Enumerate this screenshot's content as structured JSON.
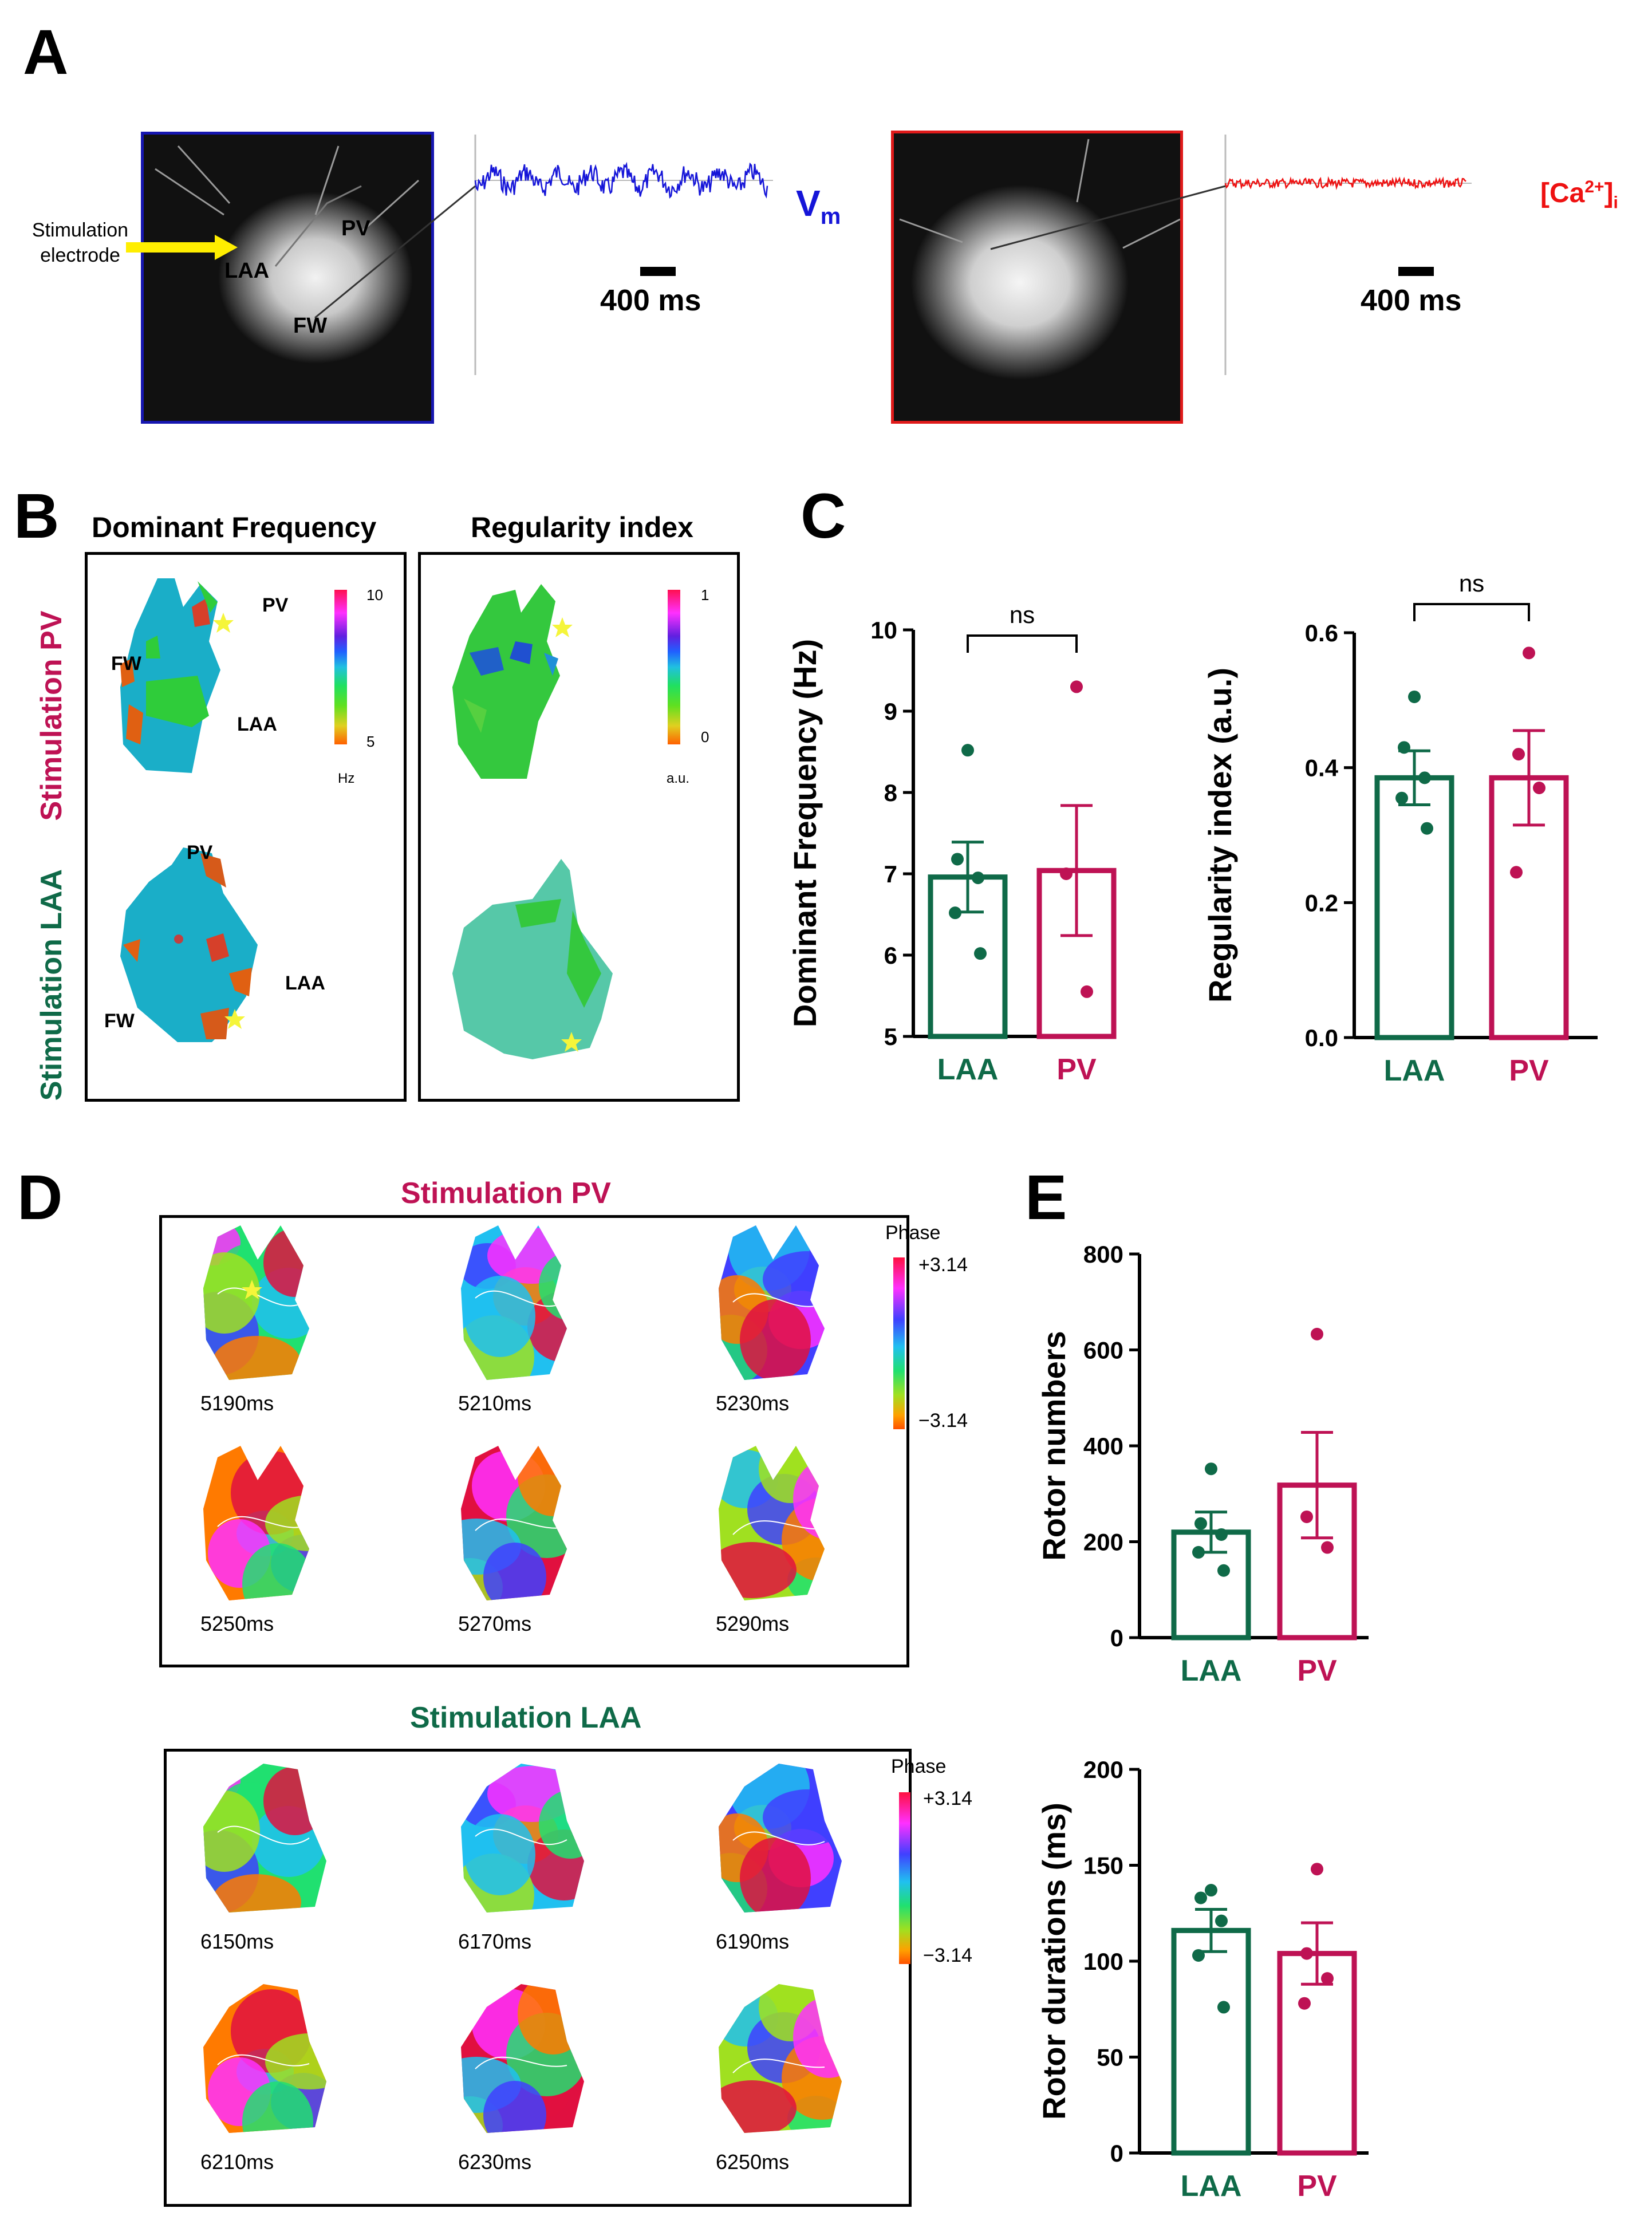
{
  "panels": {
    "A": {
      "letter": "A",
      "stim_label": "Stimulation\nelectrode",
      "map_labels": {
        "pv": "PV",
        "laa": "LAA",
        "fw": "FW"
      },
      "vm_label": "V",
      "vm_sub": "m",
      "ca_label_main": "[Ca",
      "ca_sup": "2+",
      "ca_close": "]",
      "ca_sub": "i",
      "scale_bar": "400 ms",
      "scale_bar_2": "400 ms",
      "colors": {
        "vm_frame": "#1616b0",
        "ca_frame": "#e01a1a",
        "vm_trace": "#1515d8",
        "ca_trace": "#ee1111"
      }
    },
    "B": {
      "letter": "B",
      "col1_title": "Dominant Frequency",
      "col2_title": "Regularity index",
      "row1_label": "Stimulation PV",
      "row2_label": "Stimulation LAA",
      "df_colorbar": {
        "max": "10",
        "min": "5",
        "unit": "Hz"
      },
      "ri_colorbar": {
        "max": "1",
        "min": "0",
        "unit": "a.u."
      },
      "map_labels": {
        "pv": "PV",
        "laa": "LAA",
        "fw": "FW",
        "pv2": "PV",
        "laa2": "LAA",
        "fw2": "FW"
      }
    },
    "C": {
      "letter": "C"
    },
    "D": {
      "letter": "D",
      "top_title": "Stimulation PV",
      "bottom_title": "Stimulation LAA",
      "colorbar_title": "Phase",
      "colorbar_max": "+3.14",
      "colorbar_min": "−3.14",
      "colorbar_title_2": "Phase",
      "colorbar_max_2": "+3.14",
      "colorbar_min_2": "−3.14",
      "pv_times": [
        "5190ms",
        "5210ms",
        "5230ms",
        "5250ms",
        "5270ms",
        "5290ms"
      ],
      "laa_times": [
        "6150ms",
        "6170ms",
        "6190ms",
        "6210ms",
        "6230ms",
        "6250ms"
      ]
    },
    "E": {
      "letter": "E"
    }
  },
  "group_colors": {
    "LAA": "#0f6a48",
    "PV": "#be1254"
  },
  "chart_data": [
    {
      "id": "df",
      "type": "bar",
      "ylabel": "Dominant Frequency (Hz)",
      "ylim": [
        5,
        10
      ],
      "yticks": [
        "5",
        "6",
        "7",
        "8",
        "9",
        "10"
      ],
      "categories": [
        "LAA",
        "PV"
      ],
      "values": [
        6.96,
        7.04
      ],
      "sem": [
        0.43,
        0.8
      ],
      "points": [
        [
          8.52,
          7.18,
          6.95,
          6.52,
          6.02
        ],
        [
          9.3,
          7.0,
          5.55
        ]
      ],
      "significance": "ns"
    },
    {
      "id": "ri",
      "type": "bar",
      "ylabel": "Regularity index (a.u.)",
      "ylim": [
        0,
        0.6
      ],
      "yticks": [
        "0.0",
        "0.2",
        "0.4",
        "0.6"
      ],
      "categories": [
        "LAA",
        "PV"
      ],
      "values": [
        0.385,
        0.385
      ],
      "sem": [
        0.04,
        0.07
      ],
      "points": [
        [
          0.505,
          0.43,
          0.385,
          0.355,
          0.31
        ],
        [
          0.57,
          0.42,
          0.37,
          0.245
        ]
      ],
      "significance": "ns"
    },
    {
      "id": "rn",
      "type": "bar",
      "ylabel": "Rotor numbers",
      "ylim": [
        0,
        800
      ],
      "yticks": [
        "0",
        "200",
        "400",
        "600",
        "800"
      ],
      "categories": [
        "LAA",
        "PV"
      ],
      "values": [
        220,
        318
      ],
      "sem": [
        42,
        110
      ],
      "points": [
        [
          352,
          238,
          215,
          178,
          140
        ],
        [
          633,
          252,
          188
        ]
      ],
      "significance": ""
    },
    {
      "id": "rd",
      "type": "bar",
      "ylabel": "Rotor durations (ms)",
      "ylim": [
        0,
        200
      ],
      "yticks": [
        "0",
        "50",
        "100",
        "150",
        "200"
      ],
      "categories": [
        "LAA",
        "PV"
      ],
      "values": [
        116,
        104
      ],
      "sem": [
        11,
        16
      ],
      "points": [
        [
          137,
          133,
          121,
          103,
          76
        ],
        [
          148,
          104,
          91,
          78
        ]
      ],
      "significance": ""
    }
  ]
}
